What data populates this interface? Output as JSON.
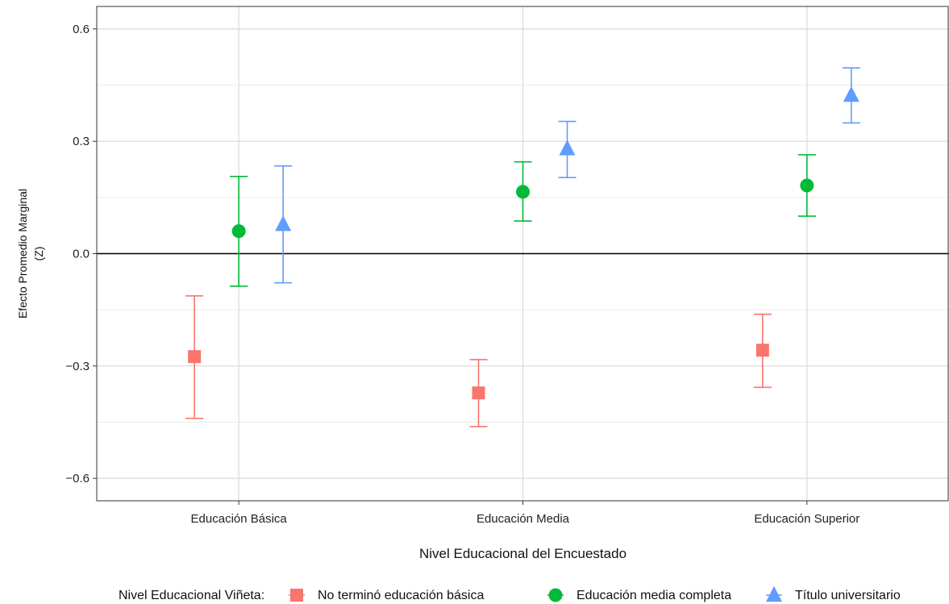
{
  "chart_data": {
    "type": "scatter",
    "subtype": "point-with-errorbars",
    "xlabel": "Nivel Educacional del Encuestado",
    "ylabel_line1": "Efecto Promedio Marginal",
    "ylabel_line2": "(Z)",
    "categories": [
      "Educación Básica",
      "Educación Media",
      "Educación Superior"
    ],
    "ylim": [
      -0.66,
      0.66
    ],
    "yticks": [
      -0.6,
      -0.3,
      0.0,
      0.3,
      0.6
    ],
    "ytick_labels": [
      "−0.6",
      "−0.3",
      "0.0",
      "0.3",
      "0.6"
    ],
    "reference_line": 0,
    "grid": true,
    "legend_title": "Nivel Educacional Viñeta:",
    "legend_position": "bottom",
    "series": [
      {
        "name": "No terminó educación básica",
        "color": "#F8766D",
        "shape": "square",
        "values": [
          -0.275,
          -0.372,
          -0.258
        ],
        "lower": [
          -0.44,
          -0.462,
          -0.357
        ],
        "upper": [
          -0.113,
          -0.283,
          -0.162
        ]
      },
      {
        "name": "Educación media completa",
        "color": "#00BA38",
        "shape": "circle",
        "values": [
          0.06,
          0.165,
          0.182
        ],
        "lower": [
          -0.087,
          0.087,
          0.1
        ],
        "upper": [
          0.206,
          0.245,
          0.264
        ]
      },
      {
        "name": "Título universitario",
        "color": "#619CFF",
        "shape": "triangle",
        "values": [
          0.078,
          0.28,
          0.423
        ],
        "lower": [
          -0.078,
          0.203,
          0.349
        ],
        "upper": [
          0.234,
          0.353,
          0.496
        ]
      }
    ]
  }
}
